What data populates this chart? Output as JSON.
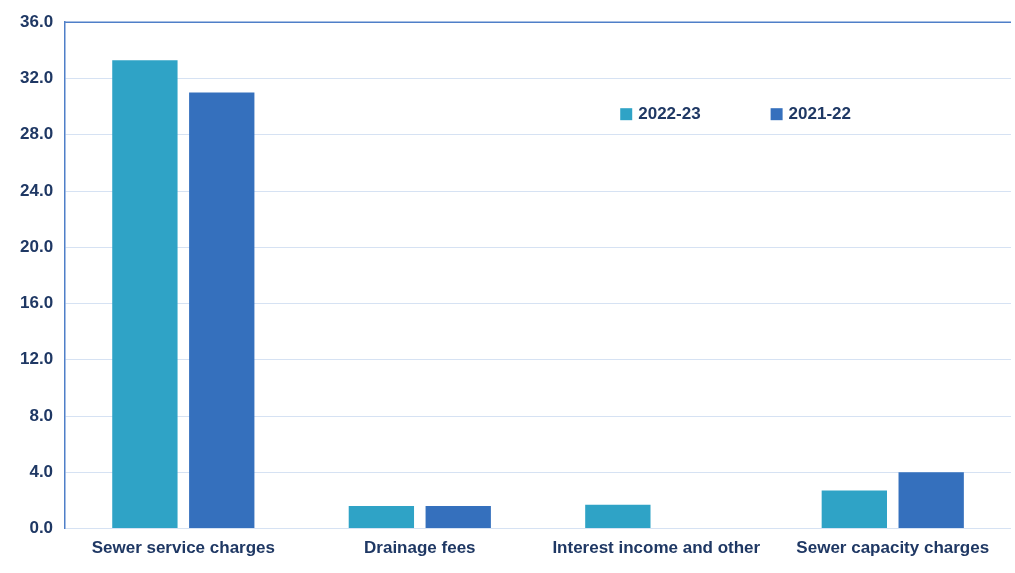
{
  "chart_data": {
    "type": "bar",
    "categories": [
      "Sewer service charges",
      "Drainage fees",
      "Interest income and other",
      "Sewer capacity charges"
    ],
    "series": [
      {
        "name": "2022-23",
        "color": "#2fa3c6",
        "values": [
          33.3,
          1.6,
          1.7,
          2.7
        ]
      },
      {
        "name": "2021-22",
        "color": "#3570bd",
        "values": [
          31.0,
          1.6,
          null,
          4.0
        ]
      }
    ],
    "ylim": [
      0,
      36
    ],
    "yticks": [
      {
        "value": 0,
        "label": "0.0"
      },
      {
        "value": 4,
        "label": "4.0"
      },
      {
        "value": 8,
        "label": "8.0"
      },
      {
        "value": 12,
        "label": "12.0"
      },
      {
        "value": 16,
        "label": "16.0"
      },
      {
        "value": 20,
        "label": "20.0"
      },
      {
        "value": 24,
        "label": "24.0"
      },
      {
        "value": 28,
        "label": "28.0"
      },
      {
        "value": 32,
        "label": "32.0"
      },
      {
        "value": 36,
        "label": "36.0"
      }
    ],
    "grid": "y",
    "legend": "top right"
  }
}
